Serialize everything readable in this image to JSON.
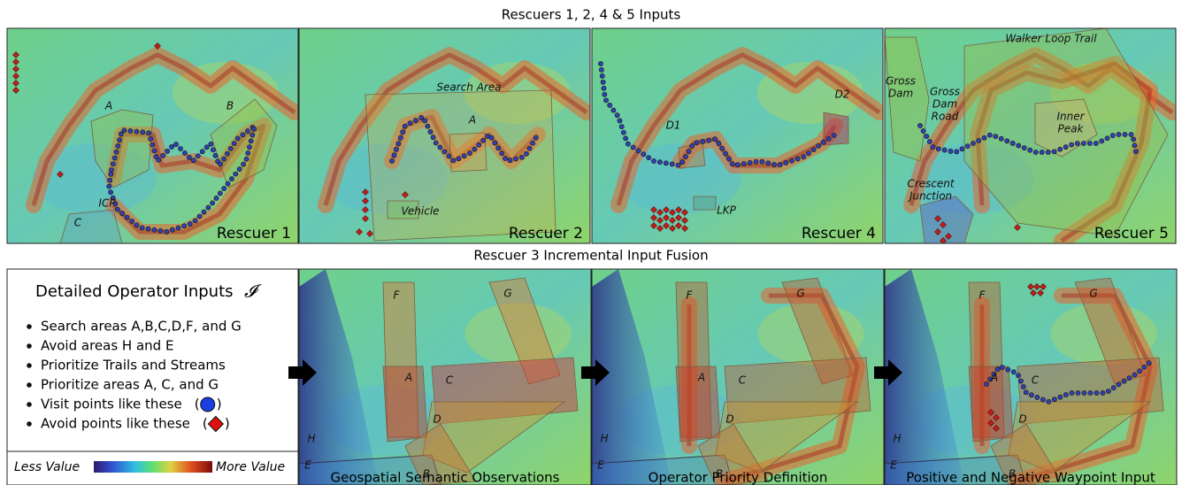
{
  "top_title": "Rescuers 1, 2, 4 & 5 Inputs",
  "top_panels": [
    {
      "caption": "Rescuer 1",
      "labels": [
        [
          "A"
        ],
        [
          "B"
        ],
        [
          "ICP"
        ],
        [
          "C"
        ]
      ]
    },
    {
      "caption": "Rescuer 2",
      "labels": [
        [
          "Search Area"
        ],
        [
          "A"
        ],
        [
          "Vehicle"
        ]
      ]
    },
    {
      "caption": "Rescuer 4",
      "labels": [
        [
          "D1"
        ],
        [
          "D2"
        ],
        [
          "LKP"
        ]
      ]
    },
    {
      "caption": "Rescuer 5",
      "labels": [
        [
          "Walker Loop Trail"
        ],
        [
          "Gross",
          "Dam"
        ],
        [
          "Gross",
          "Dam",
          "Road"
        ],
        [
          "Inner",
          "Peak"
        ],
        [
          "Crescent",
          "Junction"
        ]
      ]
    }
  ],
  "bottom_title": "Rescuer 3 Incremental Input Fusion",
  "operator_inputs": {
    "title": "Detailed Operator Inputs",
    "symbol": "𝓘",
    "items": [
      "Search areas A,B,C,D,F, and G",
      "Avoid areas H and E",
      "Prioritize Trails and Streams",
      "Prioritize areas A, C, and G",
      "Visit points like these",
      "Avoid points like these"
    ],
    "open": "(",
    "close": ")"
  },
  "legend": {
    "less": "Less Value",
    "more": "More Value"
  },
  "bottom_panels": [
    {
      "caption": "Geospatial Semantic Observations",
      "labels": [
        [
          "F"
        ],
        [
          "G"
        ],
        [
          "A"
        ],
        [
          "C"
        ],
        [
          "D"
        ],
        [
          "B"
        ],
        [
          "H"
        ],
        [
          "E"
        ]
      ]
    },
    {
      "caption": "Operator Priority Definition",
      "labels": [
        [
          "F"
        ],
        [
          "G"
        ],
        [
          "A"
        ],
        [
          "C"
        ],
        [
          "D"
        ],
        [
          "B"
        ],
        [
          "H"
        ],
        [
          "E"
        ]
      ]
    },
    {
      "caption": "Positive and Negative Waypoint Input",
      "labels": [
        [
          "F"
        ],
        [
          "G"
        ],
        [
          "A"
        ],
        [
          "C"
        ],
        [
          "D"
        ],
        [
          "B"
        ],
        [
          "H"
        ],
        [
          "E"
        ]
      ]
    }
  ]
}
